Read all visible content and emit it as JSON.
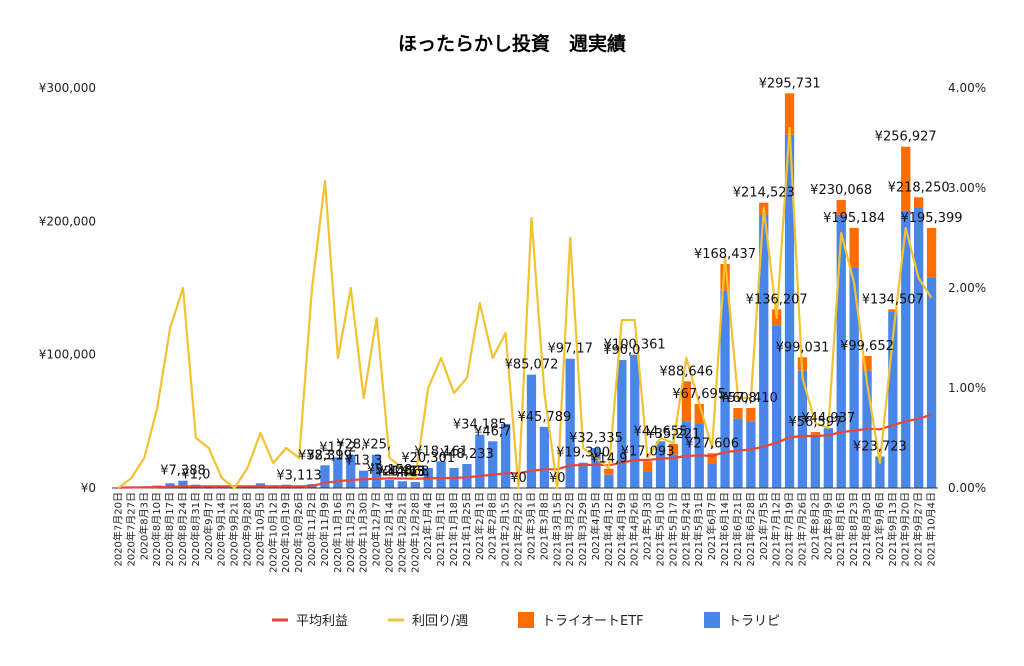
{
  "chart_data": {
    "type": "bar",
    "title": "ほったらかし投資　週実績",
    "y_left": {
      "min": 0,
      "max": 300000,
      "ticks": [
        "¥0",
        "¥100,000",
        "¥200,000",
        "¥300,000"
      ]
    },
    "y_right": {
      "min": 0,
      "max": 4,
      "ticks": [
        "0.00%",
        "1.00%",
        "2.00%",
        "3.00%",
        "4.00%"
      ]
    },
    "categories": [
      "2020年7月20日",
      "2020年7月27日",
      "2020年8月3日",
      "2020年8月10日",
      "2020年8月17日",
      "2020年8月24日",
      "2020年8月31日",
      "2020年9月7日",
      "2020年9月14日",
      "2020年9月21日",
      "2020年9月28日",
      "2020年10月5日",
      "2020年10月12日",
      "2020年10月19日",
      "2020年10月26日",
      "2020年11月2日",
      "2020年11月9日",
      "2020年11月16日",
      "2020年11月23日",
      "2020年11月30日",
      "2020年12月7日",
      "2020年12月14日",
      "2020年12月21日",
      "2020年12月28日",
      "2021年1月4日",
      "2021年1月11日",
      "2021年1月18日",
      "2021年1月25日",
      "2021年2月1日",
      "2021年2月8日",
      "2021年2月15日",
      "2021年2月22日",
      "2021年3月1日",
      "2021年3月8日",
      "2021年3月15日",
      "2021年3月22日",
      "2021年3月29日",
      "2021年4月5日",
      "2021年4月12日",
      "2021年4月19日",
      "2021年4月26日",
      "2021年5月3日",
      "2021年5月10日",
      "2021年5月17日",
      "2021年5月24日",
      "2021年5月31日",
      "2021年6月7日",
      "2021年6月14日",
      "2021年6月21日",
      "2021年6月28日",
      "2021年7月5日",
      "2021年7月12日",
      "2021年7月19日",
      "2021年7月26日",
      "2021年8月2日",
      "2021年8月9日",
      "2021年8月16日",
      "2021年8月23日",
      "2021年8月30日",
      "2021年9月6日",
      "2021年9月13日",
      "2021年9月20日",
      "2021年9月27日",
      "2021年10月4日"
    ],
    "series": [
      {
        "name": "トラリピ",
        "type": "bar",
        "axis": "left",
        "color": "#4a86e8",
        "values": [
          200,
          300,
          1200,
          1800,
          3500,
          5500,
          2500,
          1800,
          800,
          700,
          1500,
          3500,
          2000,
          2500,
          1800,
          3000,
          17000,
          23000,
          25000,
          13000,
          25000,
          6000,
          5000,
          4500,
          15000,
          20000,
          15000,
          18000,
          40000,
          35000,
          48000,
          0,
          85000,
          45789,
          0,
          97000,
          19000,
          30000,
          10000,
          96000,
          100000,
          12000,
          35000,
          25000,
          50000,
          48000,
          18000,
          148000,
          52000,
          50000,
          205000,
          122000,
          265000,
          88000,
          40000,
          44937,
          205000,
          165000,
          88000,
          23723,
          132000,
          208000,
          210000,
          158000
        ]
      },
      {
        "name": "トライオートETF",
        "type": "bar",
        "axis": "left",
        "color": "#ff6d01",
        "values": [
          0,
          0,
          0,
          0,
          0,
          0,
          0,
          0,
          0,
          0,
          0,
          0,
          0,
          0,
          0,
          0,
          0,
          0,
          0,
          0,
          0,
          0,
          0,
          0,
          0,
          0,
          0,
          0,
          0,
          0,
          0,
          0,
          0,
          0,
          0,
          0,
          0,
          0,
          4500,
          0,
          0,
          8000,
          0,
          8000,
          30000,
          15000,
          8000,
          20000,
          8000,
          10000,
          9000,
          12000,
          31000,
          10000,
          2000,
          0,
          11000,
          30000,
          11000,
          0,
          2000,
          48000,
          8000,
          37000
        ]
      },
      {
        "name": "平均利益",
        "type": "line",
        "axis": "left",
        "color": "#e8453c",
        "values": [
          300,
          400,
          500,
          700,
          900,
          1200,
          1300,
          1300,
          1300,
          1250,
          1200,
          1250,
          1250,
          1300,
          1300,
          1400,
          4000,
          5000,
          6000,
          6500,
          7000,
          7200,
          7100,
          7000,
          7200,
          7500,
          7600,
          8000,
          9000,
          10000,
          11000,
          11000,
          13000,
          14000,
          14000,
          17000,
          17200,
          17500,
          17000,
          19000,
          21000,
          21000,
          22000,
          22500,
          24000,
          24500,
          24000,
          27000,
          28000,
          29000,
          31000,
          34000,
          38000,
          39000,
          39000,
          39500,
          42000,
          43000,
          44500,
          44000,
          47000,
          50000,
          52000,
          55000
        ]
      },
      {
        "name": "利回り/週",
        "type": "line",
        "axis": "right",
        "color": "#f1c232",
        "values": [
          0.0,
          0.1,
          0.3,
          0.8,
          1.6,
          2.0,
          0.5,
          0.4,
          0.1,
          0.0,
          0.2,
          0.55,
          0.25,
          0.4,
          0.3,
          2.0,
          3.07,
          1.3,
          2.0,
          0.9,
          1.7,
          0.3,
          0.2,
          0.1,
          1.0,
          1.3,
          0.95,
          1.1,
          1.85,
          1.3,
          1.55,
          0.0,
          2.7,
          0.95,
          0.0,
          2.5,
          0.4,
          0.3,
          0.2,
          1.68,
          1.68,
          0.3,
          0.5,
          0.45,
          1.3,
          0.85,
          0.4,
          2.3,
          0.9,
          0.9,
          2.8,
          1.7,
          3.6,
          1.1,
          0.65,
          0.6,
          2.55,
          2.05,
          1.05,
          0.25,
          1.5,
          2.6,
          2.1,
          1.9
        ]
      }
    ],
    "data_labels": [
      "¥3,113",
      "¥38,399",
      "¥23,1",
      "¥17,2",
      "¥28,",
      "¥13,3",
      "¥25,",
      "¥5,158",
      "¥21,668",
      "¥4,6",
      "¥4,475",
      "¥13,",
      "¥20,301",
      "¥18,161",
      "¥48,233",
      "¥34,185",
      "¥46,7",
      "¥0",
      "¥85,072",
      "¥45,789",
      "¥0",
      "¥97,17",
      "¥19,300",
      "¥32,335",
      "¥14,9",
      "¥90,0",
      "¥100,361",
      "¥17,093",
      "¥44,655",
      "¥35,221",
      "¥88,646",
      "¥67,695",
      "¥27,606",
      "¥168,437",
      "¥57,8",
      "¥60,410",
      "¥214,523",
      "¥136,207",
      "¥295,731",
      "¥99,031",
      "¥56,597",
      "¥44,937",
      "¥230,068",
      "¥195,184",
      "¥99,652",
      "¥23,723",
      "¥134,507",
      "¥256,927",
      "¥218,250",
      "¥195,399",
      "¥7,388",
      "¥1,0"
    ],
    "legend": {
      "placement": "bottom",
      "entries": [
        "平均利益",
        "利回り/週",
        "トライオートETF",
        "トラリピ"
      ]
    },
    "grid": false
  }
}
